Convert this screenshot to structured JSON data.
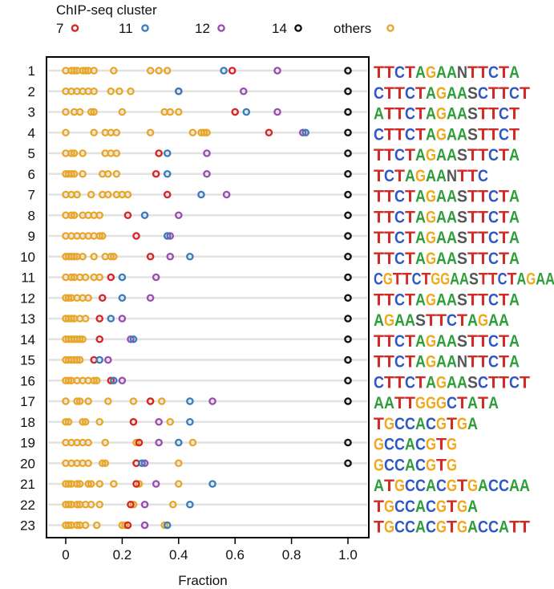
{
  "chart_data": {
    "type": "scatter",
    "legend_title": "ChIP-seq cluster",
    "legend": [
      {
        "name": "7",
        "color": "#d62728"
      },
      {
        "name": "11",
        "color": "#3a7dbf"
      },
      {
        "name": "12",
        "color": "#9a4fb0"
      },
      {
        "name": "14",
        "color": "#111111"
      },
      {
        "name": "others",
        "color": "#e8a72a"
      }
    ],
    "xlabel": "Fraction",
    "xlim": [
      -0.07,
      1.08
    ],
    "xticks": [
      "0",
      "0.2",
      "0.4",
      "0.6",
      "0.8",
      "1.0"
    ],
    "xtick_values": [
      0,
      0.2,
      0.4,
      0.6,
      0.8,
      1.0
    ],
    "rows": [
      {
        "label": "1",
        "motif": "TTCTAGAANTTCTA",
        "c7": 0.59,
        "c11": 0.56,
        "c12": 0.75,
        "c14": 1.0,
        "others": [
          0.0,
          0.02,
          0.03,
          0.04,
          0.06,
          0.07,
          0.08,
          0.1,
          0.17,
          0.3,
          0.33,
          0.36
        ]
      },
      {
        "label": "2",
        "motif": "CTTCTAGAASCTTCT",
        "c7": 0.4,
        "c11": 0.4,
        "c12": 0.63,
        "c14": 1.0,
        "others": [
          0.0,
          0.02,
          0.04,
          0.06,
          0.08,
          0.1,
          0.16,
          0.19,
          0.23
        ]
      },
      {
        "label": "3",
        "motif": "ATTCTAGAASTTCT",
        "c7": 0.6,
        "c11": 0.64,
        "c12": 0.75,
        "c14": 1.0,
        "others": [
          0.0,
          0.03,
          0.05,
          0.09,
          0.1,
          0.2,
          0.35,
          0.37,
          0.4
        ]
      },
      {
        "label": "4",
        "motif": "CTTCTAGAASTTCT",
        "c7": 0.72,
        "c11": 0.85,
        "c12": 0.84,
        "c14": 1.0,
        "others": [
          0.0,
          0.1,
          0.14,
          0.16,
          0.18,
          0.3,
          0.45,
          0.48,
          0.49,
          0.5
        ]
      },
      {
        "label": "5",
        "motif": "TTCTAGAASTTCTA",
        "c7": 0.33,
        "c11": 0.36,
        "c12": 0.5,
        "c14": 1.0,
        "others": [
          0.0,
          0.02,
          0.03,
          0.06,
          0.14,
          0.16,
          0.18
        ]
      },
      {
        "label": "6",
        "motif": "TCTAGAANTTC",
        "c7": 0.32,
        "c11": 0.36,
        "c12": 0.5,
        "c14": 1.0,
        "others": [
          0.0,
          0.01,
          0.02,
          0.03,
          0.06,
          0.13,
          0.15,
          0.18
        ]
      },
      {
        "label": "7",
        "motif": "TTCTAGAASTTCTA",
        "c7": 0.36,
        "c11": 0.48,
        "c12": 0.57,
        "c14": 1.0,
        "others": [
          0.0,
          0.02,
          0.04,
          0.09,
          0.13,
          0.15,
          0.18,
          0.2,
          0.22
        ]
      },
      {
        "label": "8",
        "motif": "TTCTAGAASTTCTA",
        "c7": 0.22,
        "c11": 0.28,
        "c12": 0.4,
        "c14": 1.0,
        "others": [
          0.0,
          0.02,
          0.03,
          0.06,
          0.08,
          0.1,
          0.12
        ]
      },
      {
        "label": "9",
        "motif": "TTCTAGAASTTCTA",
        "c7": 0.25,
        "c11": 0.36,
        "c12": 0.37,
        "c14": 1.0,
        "others": [
          0.0,
          0.02,
          0.04,
          0.06,
          0.08,
          0.1,
          0.12,
          0.13
        ]
      },
      {
        "label": "10",
        "motif": "TTCTAGAASTTCTA",
        "c7": 0.3,
        "c11": 0.44,
        "c12": 0.37,
        "c14": 1.0,
        "others": [
          0.0,
          0.01,
          0.02,
          0.03,
          0.04,
          0.06,
          0.1,
          0.14,
          0.16,
          0.17
        ]
      },
      {
        "label": "11",
        "motif": "CGTTCTGGAASTTCTAGAA",
        "c7": 0.16,
        "c11": 0.2,
        "c12": 0.32,
        "c14": 1.0,
        "others": [
          0.0,
          0.02,
          0.03,
          0.05,
          0.07,
          0.1,
          0.12
        ]
      },
      {
        "label": "12",
        "motif": "TTCTAGAASTTCTA",
        "c7": 0.13,
        "c11": 0.2,
        "c12": 0.3,
        "c14": 1.0,
        "others": [
          0.0,
          0.01,
          0.02,
          0.04,
          0.06,
          0.08
        ]
      },
      {
        "label": "13",
        "motif": "AGAASTTCTAGAA",
        "c7": 0.12,
        "c11": 0.16,
        "c12": 0.2,
        "c14": 1.0,
        "others": [
          0.0,
          0.01,
          0.02,
          0.03,
          0.05,
          0.07
        ]
      },
      {
        "label": "14",
        "motif": "TTCTAGAASTTCTA",
        "c7": 0.12,
        "c11": 0.24,
        "c12": 0.23,
        "c14": 1.0,
        "others": [
          0.0,
          0.01,
          0.02,
          0.03,
          0.04,
          0.05,
          0.06
        ]
      },
      {
        "label": "15",
        "motif": "TTCTAGAANTTCTA",
        "c7": 0.1,
        "c11": 0.12,
        "c12": 0.15,
        "c14": 1.0,
        "others": [
          0.0,
          0.01,
          0.02,
          0.03,
          0.04,
          0.05
        ]
      },
      {
        "label": "16",
        "motif": "CTTCTAGAASCTTCT",
        "c7": 0.16,
        "c11": 0.17,
        "c12": 0.2,
        "c14": 1.0,
        "others": [
          0.0,
          0.01,
          0.02,
          0.04,
          0.06,
          0.08,
          0.1,
          0.11
        ]
      },
      {
        "label": "17",
        "motif": "AATTGGGCTATA",
        "c7": 0.3,
        "c11": 0.44,
        "c12": 0.52,
        "c14": 1.0,
        "others": [
          0.0,
          0.04,
          0.05,
          0.08,
          0.15,
          0.24,
          0.3,
          0.34
        ]
      },
      {
        "label": "18",
        "motif": "TGCCACGTGA",
        "c7": 0.24,
        "c11": 0.44,
        "c12": 0.33,
        "c14": null,
        "others": [
          0.0,
          0.01,
          0.06,
          0.07,
          0.12,
          0.24,
          0.37
        ]
      },
      {
        "label": "19",
        "motif": "GCCACGTG",
        "c7": 0.26,
        "c11": 0.4,
        "c12": 0.33,
        "c14": 1.0,
        "others": [
          0.0,
          0.02,
          0.04,
          0.06,
          0.08,
          0.14,
          0.25,
          0.26,
          0.45
        ]
      },
      {
        "label": "20",
        "motif": "GCCACGTG",
        "c7": 0.25,
        "c11": 0.27,
        "c12": 0.28,
        "c14": 1.0,
        "others": [
          0.0,
          0.02,
          0.04,
          0.06,
          0.08,
          0.13,
          0.14,
          0.25,
          0.4
        ]
      },
      {
        "label": "21",
        "motif": "ATGCCACGTGACCAA",
        "c7": 0.25,
        "c11": 0.52,
        "c12": 0.32,
        "c14": null,
        "others": [
          0.0,
          0.01,
          0.02,
          0.04,
          0.05,
          0.08,
          0.09,
          0.12,
          0.17,
          0.26,
          0.4
        ]
      },
      {
        "label": "22",
        "motif": "TGCCACGTGA",
        "c7": 0.23,
        "c11": 0.44,
        "c12": 0.28,
        "c14": null,
        "others": [
          0.0,
          0.01,
          0.02,
          0.04,
          0.05,
          0.07,
          0.09,
          0.12,
          0.24,
          0.38
        ]
      },
      {
        "label": "23",
        "motif": "TGCCACGTGACCATT",
        "c7": 0.22,
        "c11": 0.36,
        "c12": 0.28,
        "c14": null,
        "others": [
          0.0,
          0.01,
          0.02,
          0.04,
          0.05,
          0.07,
          0.11,
          0.2,
          0.21,
          0.35
        ]
      }
    ]
  }
}
